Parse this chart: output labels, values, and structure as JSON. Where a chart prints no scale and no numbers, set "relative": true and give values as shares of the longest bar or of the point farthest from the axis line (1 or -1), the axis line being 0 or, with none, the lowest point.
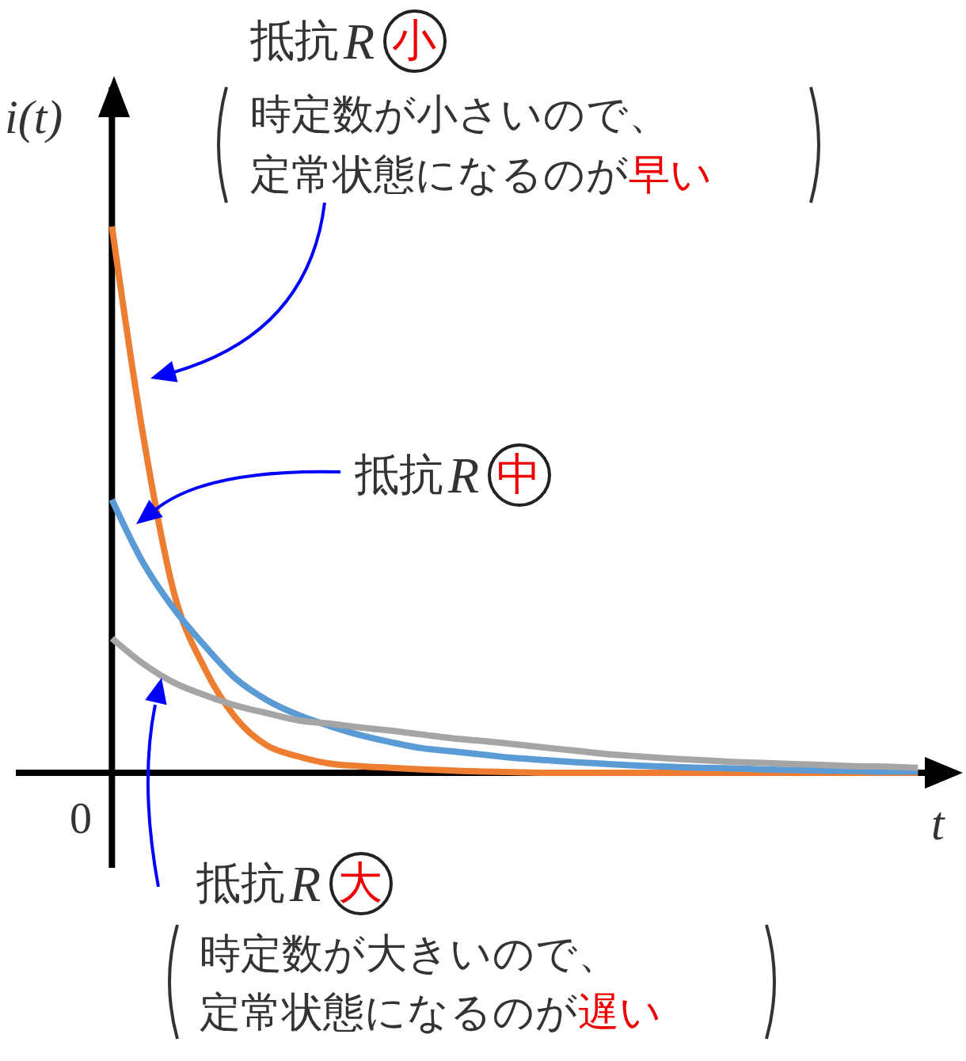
{
  "chart_data": {
    "type": "line",
    "relative": true,
    "xlabel": "t",
    "ylabel": "i(t)",
    "marker": "none",
    "line_style": "solid",
    "categories": [
      null,
      null,
      null,
      null,
      null,
      null,
      null,
      null,
      null,
      null,
      null,
      null,
      null,
      null,
      null,
      null,
      null,
      null,
      null,
      null,
      null,
      null,
      null,
      null,
      null,
      null,
      null
    ],
    "series": [
      {
        "color": "#ed7d31",
        "values": [
          1,
          0.62,
          0.33,
          0.19,
          0.1,
          0.05,
          0.03,
          0.017,
          0.012,
          0.009,
          0.006,
          0.004,
          0.002,
          0.001,
          0,
          0,
          0,
          0,
          0,
          0,
          0,
          0,
          0,
          0,
          0,
          0,
          0
        ]
      },
      {
        "color": "#5b9bd5",
        "values": [
          0.5,
          0.385,
          0.3,
          0.232,
          0.172,
          0.133,
          0.106,
          0.086,
          0.069,
          0.056,
          0.045,
          0.039,
          0.033,
          0.027,
          0.023,
          0.019,
          0.016,
          0.013,
          0.011,
          0.009,
          0.008,
          0.006,
          0.005,
          0.004,
          0.003,
          0.002,
          0.002
        ]
      },
      {
        "color": "#a5a5a5",
        "values": [
          0.246,
          0.2,
          0.165,
          0.142,
          0.123,
          0.109,
          0.096,
          0.09,
          0.083,
          0.077,
          0.07,
          0.063,
          0.058,
          0.052,
          0.046,
          0.04,
          0.034,
          0.03,
          0.026,
          0.023,
          0.02,
          0.018,
          0.016,
          0.014,
          0.012,
          0.011,
          0.009
        ]
      }
    ],
    "annotations": [
      "抵抗R小",
      "時定数が小さいので、",
      "定常状態になるのが早い",
      "抵抗R中",
      "抵抗R大",
      "時定数が大きいので、",
      "定常状態になるのが遅い",
      "0"
    ]
  }
}
